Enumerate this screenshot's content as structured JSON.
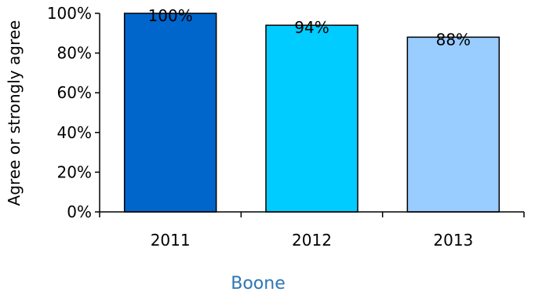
{
  "chart_data": {
    "type": "bar",
    "categories": [
      "2011",
      "2012",
      "2013"
    ],
    "values": [
      100,
      94,
      88
    ],
    "data_labels": [
      "100%",
      "94%",
      "88%"
    ],
    "ylabel": "Agree or strongly agree",
    "xlabel": "Boone",
    "ylim": [
      0,
      100
    ],
    "yticks": [
      "0%",
      "20%",
      "40%",
      "60%",
      "80%",
      "100%"
    ],
    "colors": [
      "#0066cc",
      "#00ccff",
      "#99ccff"
    ],
    "grid": false,
    "legend": "none"
  }
}
